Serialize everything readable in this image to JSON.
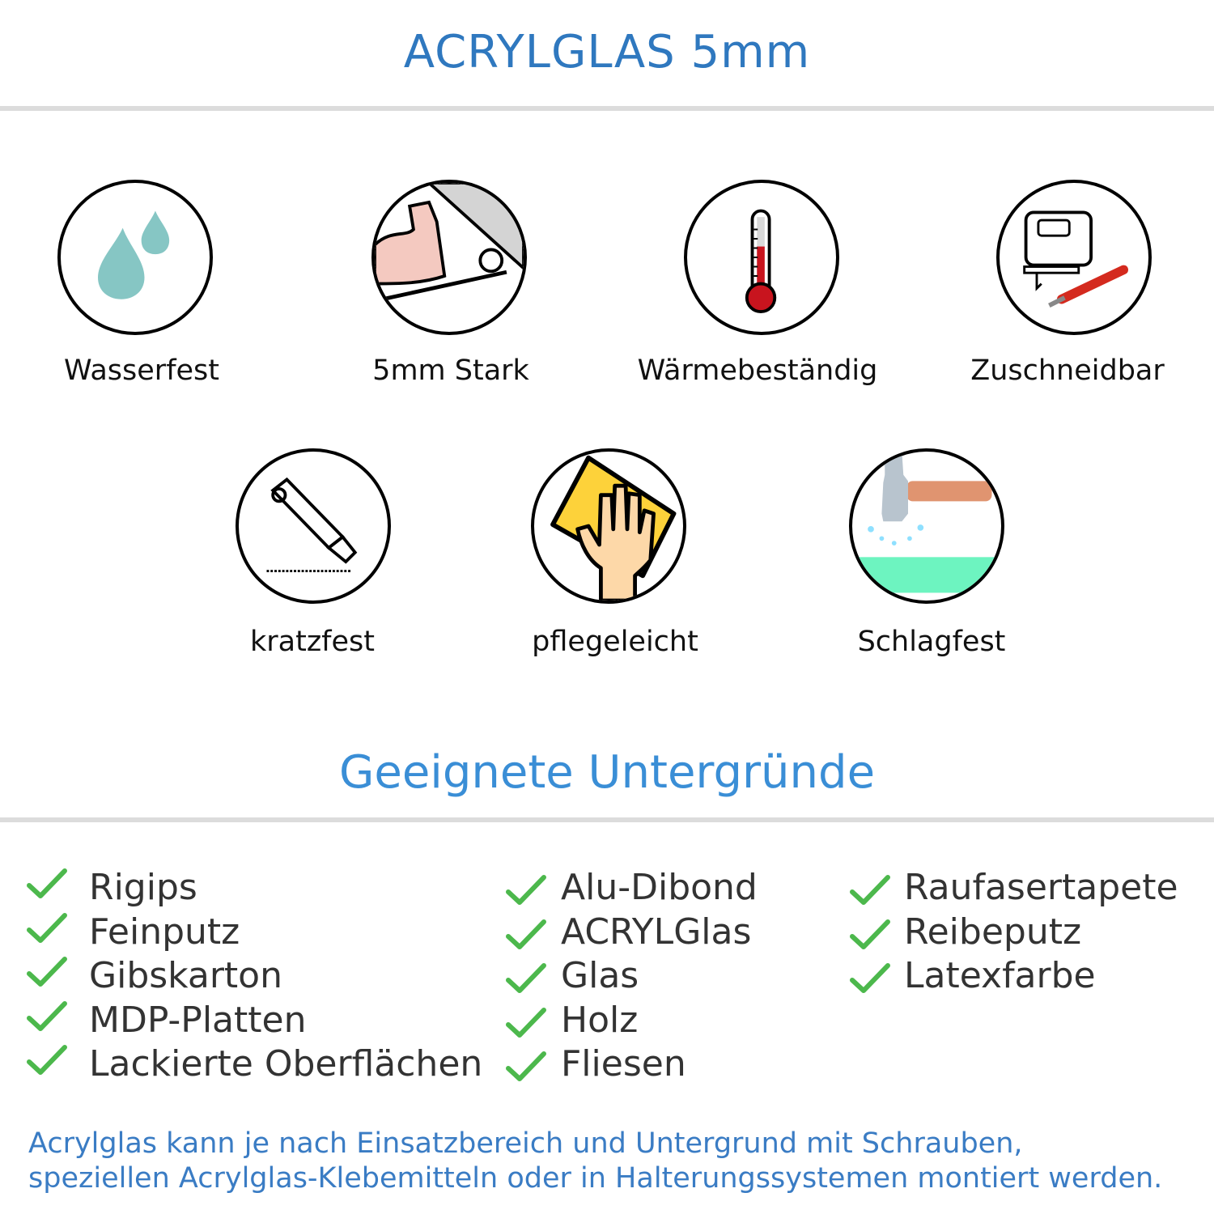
{
  "title": "ACRYLGLAS 5mm",
  "features": [
    {
      "label": "Wasserfest",
      "icon": "water-drops-icon"
    },
    {
      "label": "5mm Stark",
      "icon": "strong-arm-icon"
    },
    {
      "label": "Wärmebeständig",
      "icon": "thermometer-icon"
    },
    {
      "label": "Zuschneidbar",
      "icon": "jigsaw-cutter-icon"
    },
    {
      "label": "kratzfest",
      "icon": "utility-knife-icon"
    },
    {
      "label": "pflegeleicht",
      "icon": "cleaning-hand-icon"
    },
    {
      "label": "Schlagfest",
      "icon": "hammer-impact-icon"
    }
  ],
  "surfaces_heading": "Geeignete Untergründe",
  "surfaces": {
    "col1": [
      "Rigips",
      "Feinputz",
      "Gibskarton",
      "MDP-Platten",
      "Lackierte Oberflächen"
    ],
    "col2": [
      "Alu-Dibond",
      "ACRYLGlas",
      "Glas",
      "Holz",
      "Fliesen"
    ],
    "col3": [
      "Raufasertapete",
      "Reibeputz",
      "Latexfarbe"
    ]
  },
  "footer": {
    "line1": "Acrylglas kann je nach Einsatzbereich und Untergrund mit Schrauben,",
    "line2": "speziellen Acrylglas-Klebemitteln oder in Halterungssystemen montiert werden."
  },
  "colors": {
    "title": "#2f78bf",
    "heading": "#3a8ed6",
    "check": "#4cb84c",
    "footer": "#3a7cc4"
  }
}
